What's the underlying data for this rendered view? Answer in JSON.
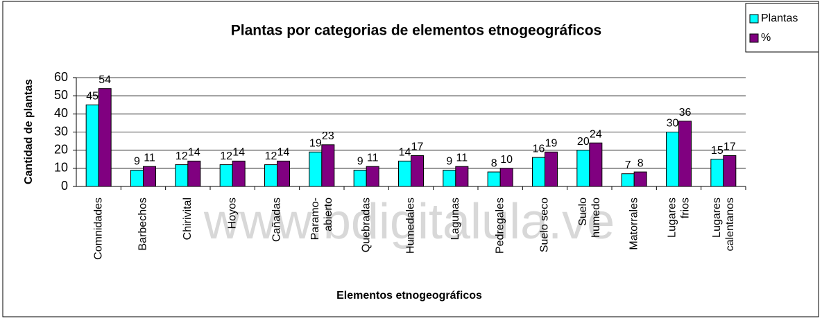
{
  "chart_data": {
    "type": "bar",
    "title": "Plantas por categorias de elementos etnogeográficos",
    "x_label": "Elementos etnogeográficos",
    "y_label": "Cantidad de plantas",
    "watermark": "www.bdigitalula.ve",
    "categories": [
      "Comnidades",
      "Barbechos",
      "Chirivital",
      "Hoyos",
      "Cañadas",
      "Paramo-\nabierto",
      "Quebradas",
      "Humedales",
      "Lagunas",
      "Pedregales",
      "Suelo seco",
      "Suelo\nhumedo",
      "Matorrales",
      "Lugares\nfrios",
      "Lugares\ncalentanos"
    ],
    "series": [
      {
        "name": "Plantas",
        "color": "#00ffff",
        "values": [
          45,
          9,
          12,
          12,
          12,
          19,
          9,
          14,
          9,
          8,
          16,
          20,
          7,
          30,
          15
        ]
      },
      {
        "name": "%",
        "color": "#800080",
        "values": [
          54,
          11,
          14,
          14,
          14,
          23,
          11,
          17,
          11,
          10,
          19,
          24,
          8,
          36,
          17
        ]
      }
    ],
    "ylim": [
      0,
      60
    ],
    "yticks": [
      0,
      10,
      20,
      30,
      40,
      50,
      60
    ],
    "grid": true,
    "legend": "top-right"
  }
}
